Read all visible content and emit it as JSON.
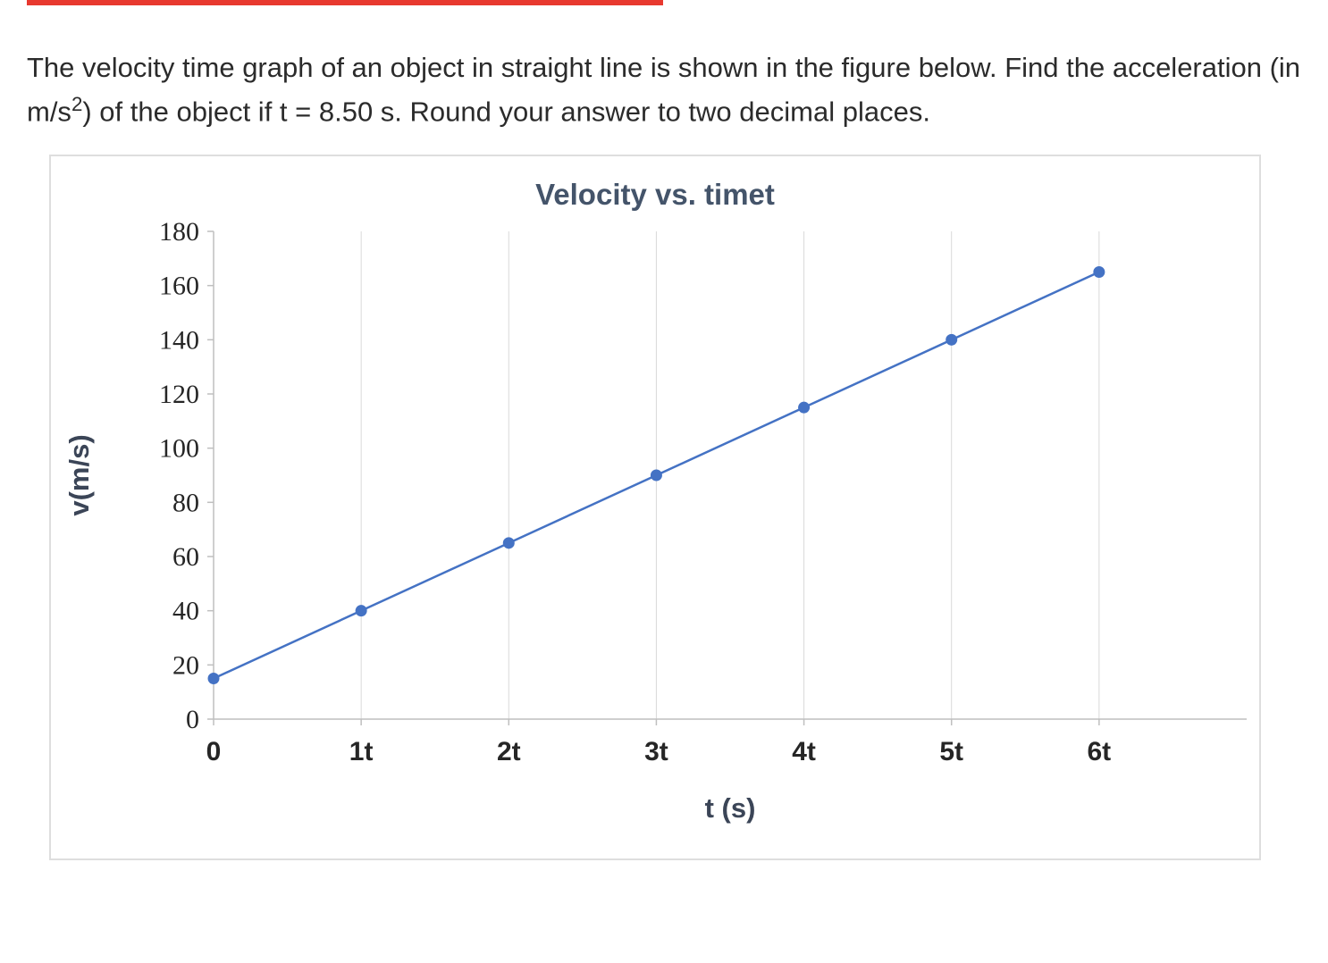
{
  "page": {
    "question": {
      "part1": "The velocity time graph of an object in straight line is shown in the figure below. Find the acceleration (in m/s",
      "sup": "2",
      "part2": ") of the object if t = 8.50 s. Round your answer to two decimal places."
    }
  },
  "chart_data": {
    "type": "line",
    "title": "Velocity vs. timet",
    "xlabel": "t (s)",
    "ylabel": "v(m/s)",
    "categories": [
      "0",
      "1t",
      "2t",
      "3t",
      "4t",
      "5t",
      "6t"
    ],
    "values": [
      15,
      40,
      65,
      90,
      115,
      140,
      165
    ],
    "ylim": [
      0,
      180
    ],
    "ytick_step": 20,
    "grid": "vertical-only",
    "legend": "none",
    "marker": "circle",
    "line_color": "#4472c4"
  },
  "colors": {
    "accent_line": "#4472c4",
    "chart_title": "#44546a",
    "gridline": "#d9d9d9",
    "axis_line": "#bfbfbf",
    "tick_text": "#262626",
    "top_bar": "#e8392f"
  }
}
